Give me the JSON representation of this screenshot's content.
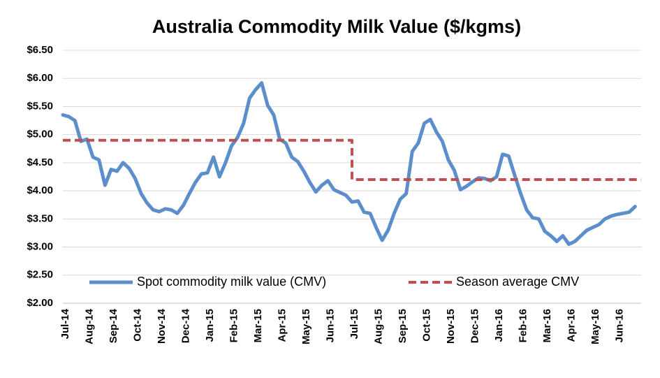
{
  "chart_data": {
    "type": "line",
    "title": "Australia Commodity  Milk Value ($/kgms)",
    "categories": [
      "Jul-14",
      null,
      null,
      null,
      "Aug-14",
      null,
      null,
      null,
      "Sep-14",
      null,
      null,
      null,
      "Oct-14",
      null,
      null,
      null,
      "Nov-14",
      null,
      null,
      null,
      "Dec-14",
      null,
      null,
      null,
      "Jan-15",
      null,
      null,
      null,
      "Feb-15",
      null,
      null,
      null,
      "Mar-15",
      null,
      null,
      null,
      "Apr-15",
      null,
      null,
      null,
      "May-15",
      null,
      null,
      null,
      "Jun-15",
      null,
      null,
      null,
      "Jul-15",
      null,
      null,
      null,
      "Aug-15",
      null,
      null,
      null,
      "Sep-15",
      null,
      null,
      null,
      "Oct-15",
      null,
      null,
      null,
      "Nov-15",
      null,
      null,
      null,
      "Dec-15",
      null,
      null,
      null,
      "Jan-16",
      null,
      null,
      null,
      "Feb-16",
      null,
      null,
      null,
      "Mar-16",
      null,
      null,
      null,
      "Apr-16",
      null,
      null,
      null,
      "May-16",
      null,
      null,
      null,
      "Jun-16",
      null,
      null,
      null
    ],
    "series": [
      {
        "name": "Spot commodity milk value (CMV)",
        "color": "#5b8ecb",
        "style": "solid",
        "values": [
          5.35,
          5.32,
          5.25,
          4.88,
          4.92,
          4.6,
          4.55,
          4.1,
          4.38,
          4.35,
          4.5,
          4.4,
          4.22,
          3.95,
          3.78,
          3.66,
          3.63,
          3.68,
          3.66,
          3.6,
          3.74,
          3.95,
          4.15,
          4.3,
          4.32,
          4.6,
          4.25,
          4.5,
          4.8,
          4.95,
          5.2,
          5.65,
          5.8,
          5.92,
          5.52,
          5.35,
          4.92,
          4.85,
          4.6,
          4.52,
          4.35,
          4.15,
          3.98,
          4.1,
          4.18,
          4.02,
          3.97,
          3.92,
          3.8,
          3.82,
          3.62,
          3.6,
          3.35,
          3.12,
          3.3,
          3.6,
          3.85,
          3.95,
          4.7,
          4.85,
          5.2,
          5.27,
          5.05,
          4.88,
          4.55,
          4.36,
          4.02,
          4.08,
          4.16,
          4.23,
          4.22,
          4.18,
          4.25,
          4.65,
          4.62,
          4.28,
          3.95,
          3.66,
          3.52,
          3.5,
          3.28,
          3.2,
          3.1,
          3.2,
          3.05,
          3.1,
          3.2,
          3.3,
          3.35,
          3.4,
          3.5,
          3.55,
          3.58,
          3.6,
          3.62,
          3.72
        ]
      },
      {
        "name": "Season average CMV",
        "color": "#c0504d",
        "style": "dashed",
        "values": [
          4.9,
          4.9,
          4.9,
          4.9,
          4.9,
          4.9,
          4.9,
          4.9,
          4.9,
          4.9,
          4.9,
          4.9,
          4.9,
          4.9,
          4.9,
          4.9,
          4.9,
          4.9,
          4.9,
          4.9,
          4.9,
          4.9,
          4.9,
          4.9,
          4.9,
          4.9,
          4.9,
          4.9,
          4.9,
          4.9,
          4.9,
          4.9,
          4.9,
          4.9,
          4.9,
          4.9,
          4.9,
          4.9,
          4.9,
          4.9,
          4.9,
          4.9,
          4.9,
          4.9,
          4.9,
          4.9,
          4.9,
          4.9,
          4.2,
          4.2,
          4.2,
          4.2,
          4.2,
          4.2,
          4.2,
          4.2,
          4.2,
          4.2,
          4.2,
          4.2,
          4.2,
          4.2,
          4.2,
          4.2,
          4.2,
          4.2,
          4.2,
          4.2,
          4.2,
          4.2,
          4.2,
          4.2,
          4.2,
          4.2,
          4.2,
          4.2,
          4.2,
          4.2,
          4.2,
          4.2,
          4.2,
          4.2,
          4.2,
          4.2,
          4.2,
          4.2,
          4.2,
          4.2,
          4.2,
          4.2,
          4.2,
          4.2,
          4.2,
          4.2,
          4.2,
          4.2
        ]
      }
    ],
    "ylim": [
      2,
      6.5
    ],
    "yticks": [
      {
        "value": 2,
        "label": "$2.00"
      },
      {
        "value": 2.5,
        "label": "$2.50"
      },
      {
        "value": 3,
        "label": "$3.00"
      },
      {
        "value": 3.5,
        "label": "$3.50"
      },
      {
        "value": 4,
        "label": "$4.00"
      },
      {
        "value": 4.5,
        "label": "$4.50"
      },
      {
        "value": 5,
        "label": "$5.00"
      },
      {
        "value": 5.5,
        "label": "$5.50"
      },
      {
        "value": 6,
        "label": "$6.00"
      },
      {
        "value": 6.5,
        "label": "$6.50"
      }
    ],
    "grid": true,
    "legend": "bottom"
  }
}
